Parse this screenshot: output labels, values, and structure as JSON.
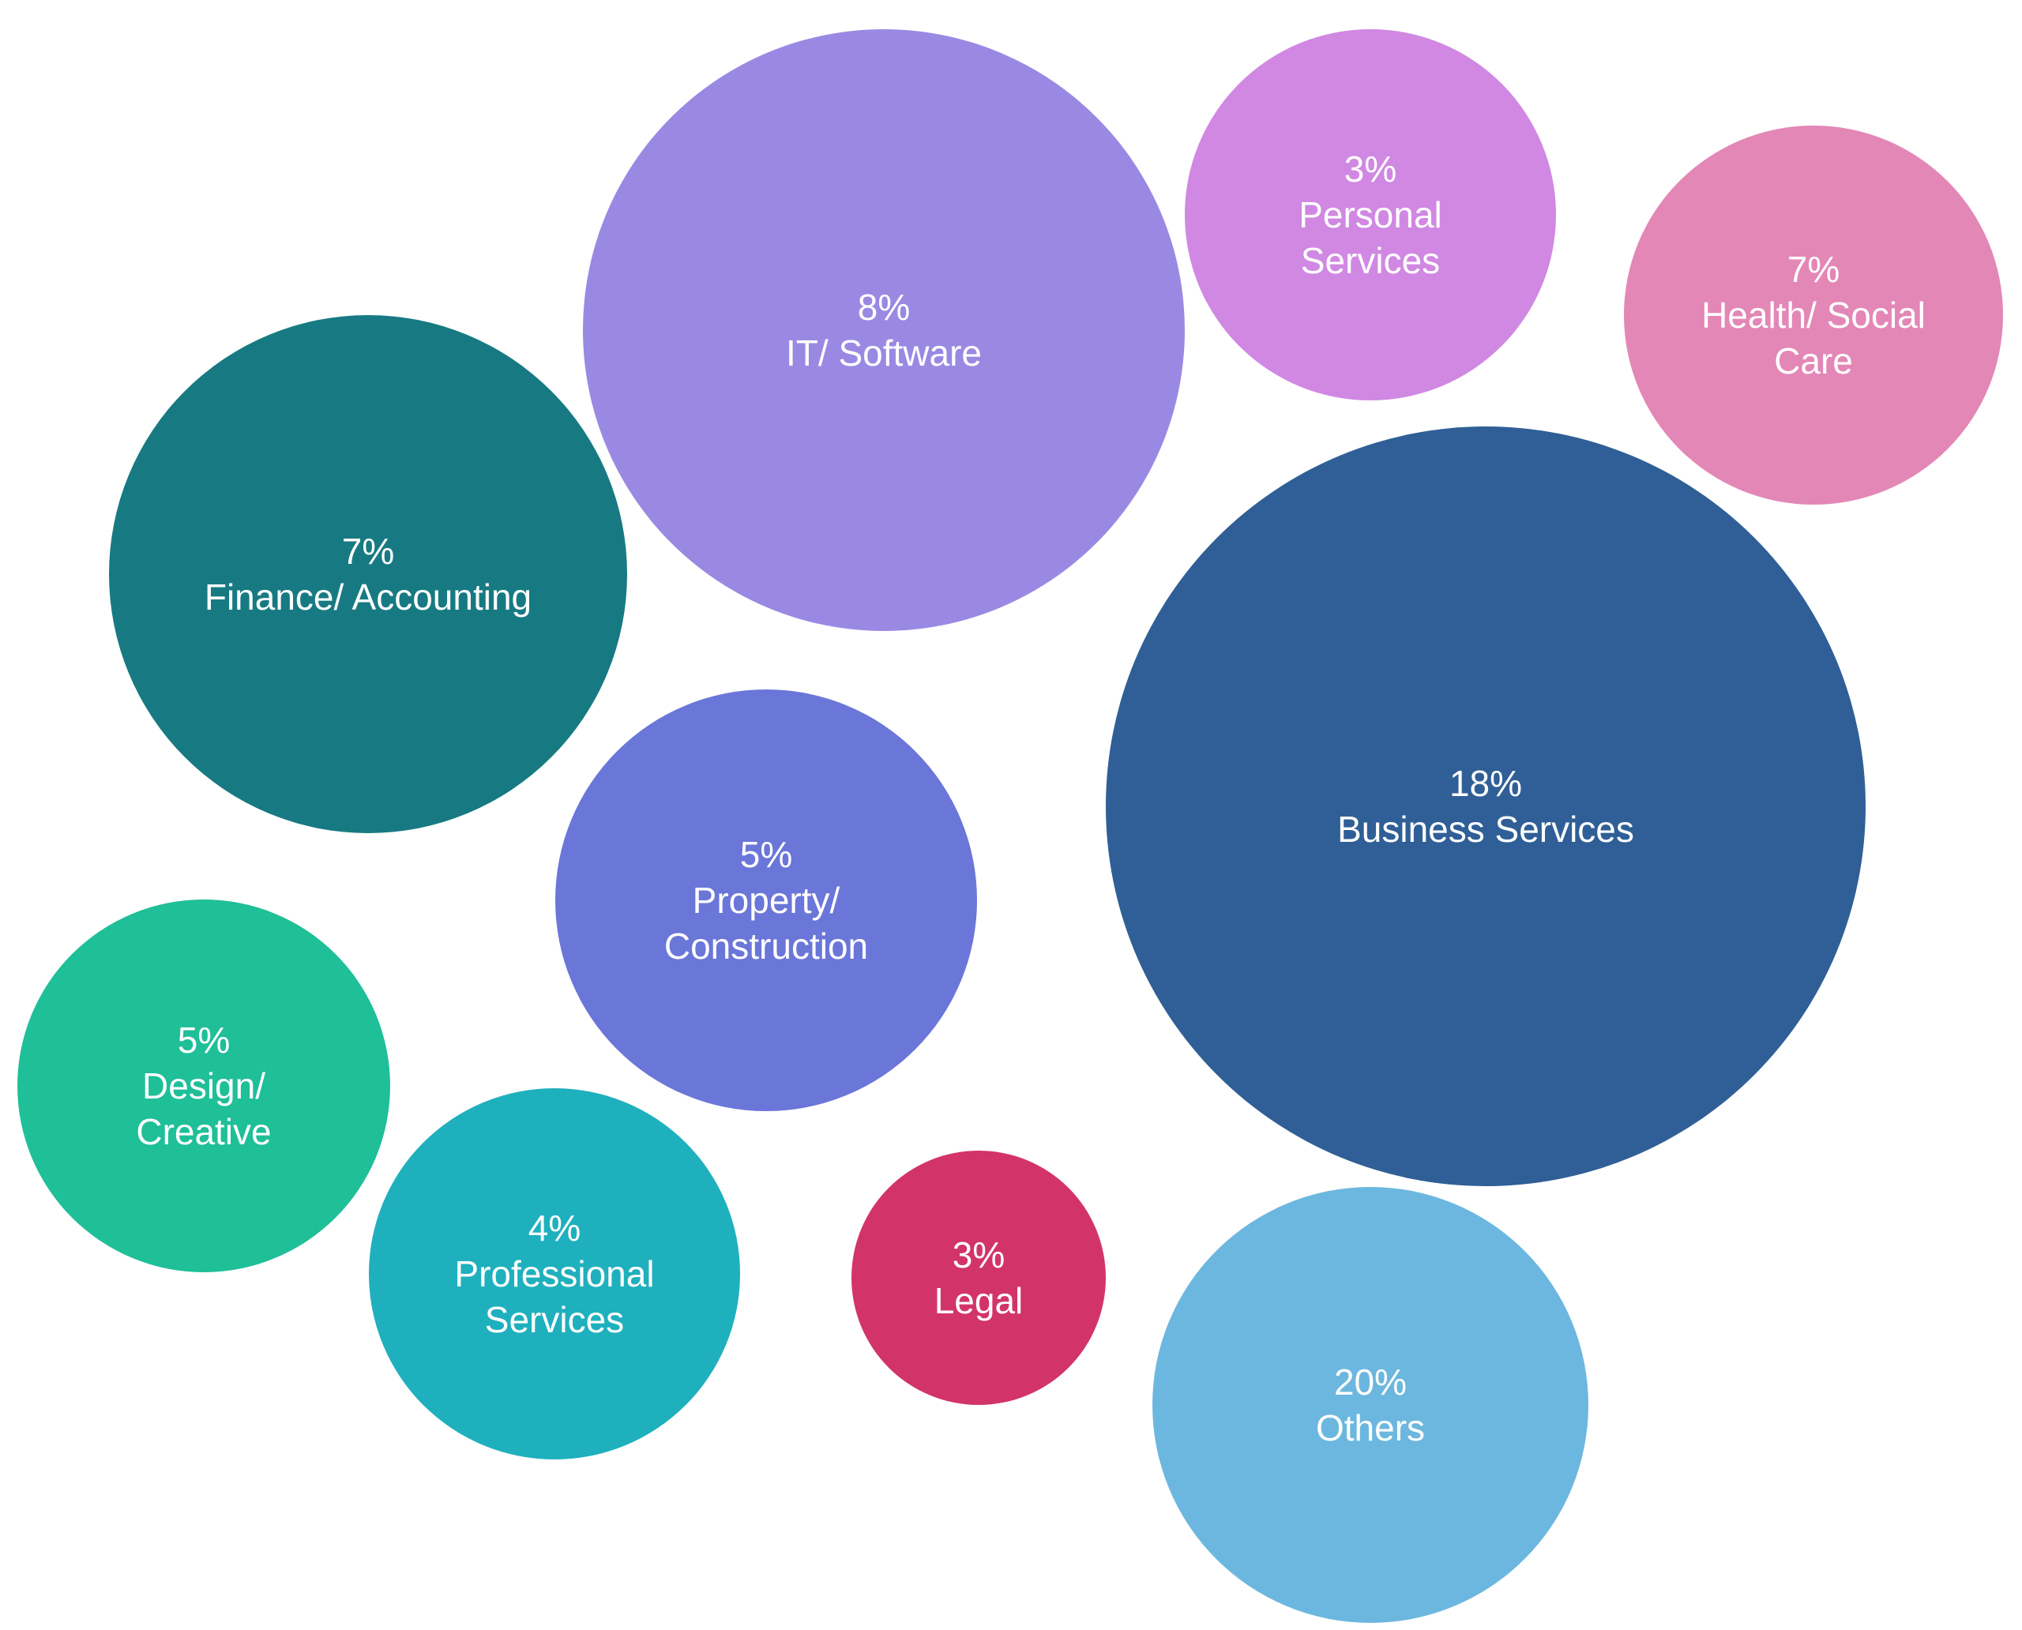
{
  "chart_data": {
    "type": "bubble",
    "categories": [
      "IT/ Software",
      "Personal Services",
      "Health/ Social Care",
      "Finance/ Accounting",
      "Business Services",
      "Property/ Construction",
      "Design/ Creative",
      "Professional Services",
      "Legal",
      "Others"
    ],
    "values": [
      8,
      3,
      7,
      7,
      18,
      5,
      5,
      4,
      3,
      20
    ],
    "value_labels": [
      "8%",
      "3%",
      "7%",
      "7%",
      "18%",
      "5%",
      "5%",
      "4%",
      "3%",
      "20%"
    ],
    "colors": [
      "#9a89e3",
      "#d088e2",
      "#e387b6",
      "#177a82",
      "#2f5f96",
      "#6b76d9",
      "#1fbf98",
      "#1fb0be",
      "#d23469",
      "#6cb7df"
    ]
  }
}
